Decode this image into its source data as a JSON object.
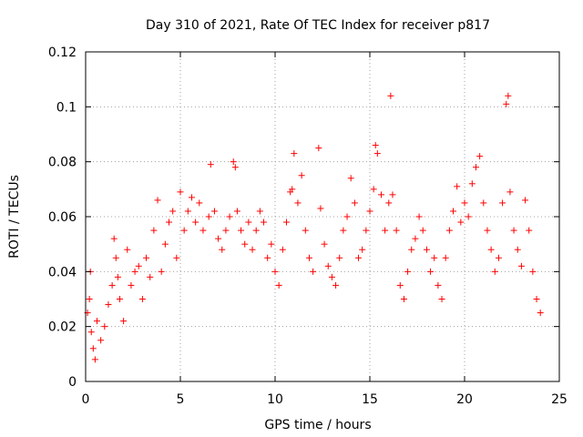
{
  "chart_data": {
    "type": "scatter",
    "title": "Day 310 of 2021, Rate Of TEC Index for receiver p817",
    "xlabel": "GPS time / hours",
    "ylabel": "ROTI / TECUs",
    "xlim": [
      0,
      25
    ],
    "ylim": [
      0,
      0.12
    ],
    "x_ticks": [
      0,
      5,
      10,
      15,
      20,
      25
    ],
    "x_tick_labels": [
      "0",
      "5",
      "10",
      "15",
      "20",
      "25"
    ],
    "y_ticks": [
      0,
      0.02,
      0.04,
      0.06,
      0.08,
      0.1,
      0.12
    ],
    "y_tick_labels": [
      "0",
      "0.02",
      "0.04",
      "0.06",
      "0.08",
      "0.1",
      "0.12"
    ],
    "grid": true,
    "legend": "none",
    "marker": "plus",
    "color": "#ff0000",
    "series": [
      {
        "x": [
          0.1,
          0.2,
          0.25,
          0.3,
          0.4,
          0.5,
          0.6,
          0.8,
          1.0,
          1.2,
          1.4,
          1.5,
          1.6,
          1.7,
          1.8,
          2.0,
          2.2,
          2.4,
          2.6,
          2.8,
          3.0,
          3.2,
          3.4,
          3.6,
          3.8,
          4.0,
          4.2,
          4.4,
          4.6,
          4.8,
          5.0,
          5.2,
          5.4,
          5.6,
          5.8,
          6.0,
          6.2,
          6.5,
          6.6,
          6.8,
          7.0,
          7.2,
          7.4,
          7.6,
          7.8,
          7.9,
          8.0,
          8.2,
          8.4,
          8.6,
          8.8,
          9.0,
          9.2,
          9.4,
          9.6,
          9.8,
          10.0,
          10.2,
          10.4,
          10.6,
          10.8,
          10.9,
          11.0,
          11.2,
          11.4,
          11.6,
          11.8,
          12.0,
          12.3,
          12.4,
          12.6,
          12.8,
          13.0,
          13.2,
          13.4,
          13.6,
          13.8,
          14.0,
          14.2,
          14.4,
          14.6,
          14.8,
          15.0,
          15.2,
          15.3,
          15.4,
          15.6,
          15.8,
          16.0,
          16.1,
          16.2,
          16.4,
          16.6,
          16.8,
          17.0,
          17.2,
          17.4,
          17.6,
          17.8,
          18.0,
          18.2,
          18.4,
          18.6,
          18.8,
          19.0,
          19.2,
          19.4,
          19.6,
          19.8,
          20.0,
          20.2,
          20.4,
          20.6,
          20.8,
          21.0,
          21.2,
          21.4,
          21.6,
          21.8,
          22.0,
          22.2,
          22.3,
          22.4,
          22.6,
          22.8,
          23.0,
          23.2,
          23.4,
          23.6,
          23.8,
          24.0
        ],
        "y": [
          0.025,
          0.03,
          0.04,
          0.018,
          0.012,
          0.008,
          0.022,
          0.015,
          0.02,
          0.028,
          0.035,
          0.052,
          0.045,
          0.038,
          0.03,
          0.022,
          0.048,
          0.035,
          0.04,
          0.042,
          0.03,
          0.045,
          0.038,
          0.055,
          0.066,
          0.04,
          0.05,
          0.058,
          0.062,
          0.045,
          0.069,
          0.055,
          0.062,
          0.067,
          0.058,
          0.065,
          0.055,
          0.06,
          0.079,
          0.062,
          0.052,
          0.048,
          0.055,
          0.06,
          0.08,
          0.078,
          0.062,
          0.055,
          0.05,
          0.058,
          0.048,
          0.055,
          0.062,
          0.058,
          0.045,
          0.05,
          0.04,
          0.035,
          0.048,
          0.058,
          0.069,
          0.07,
          0.083,
          0.065,
          0.075,
          0.055,
          0.045,
          0.04,
          0.085,
          0.063,
          0.05,
          0.042,
          0.038,
          0.035,
          0.045,
          0.055,
          0.06,
          0.074,
          0.065,
          0.045,
          0.048,
          0.055,
          0.062,
          0.07,
          0.086,
          0.083,
          0.068,
          0.055,
          0.065,
          0.104,
          0.068,
          0.055,
          0.035,
          0.03,
          0.04,
          0.048,
          0.052,
          0.06,
          0.055,
          0.048,
          0.04,
          0.045,
          0.035,
          0.03,
          0.045,
          0.055,
          0.062,
          0.071,
          0.058,
          0.065,
          0.06,
          0.072,
          0.078,
          0.082,
          0.065,
          0.055,
          0.048,
          0.04,
          0.045,
          0.065,
          0.101,
          0.104,
          0.069,
          0.055,
          0.048,
          0.042,
          0.066,
          0.055,
          0.04,
          0.03,
          0.025
        ]
      }
    ]
  }
}
